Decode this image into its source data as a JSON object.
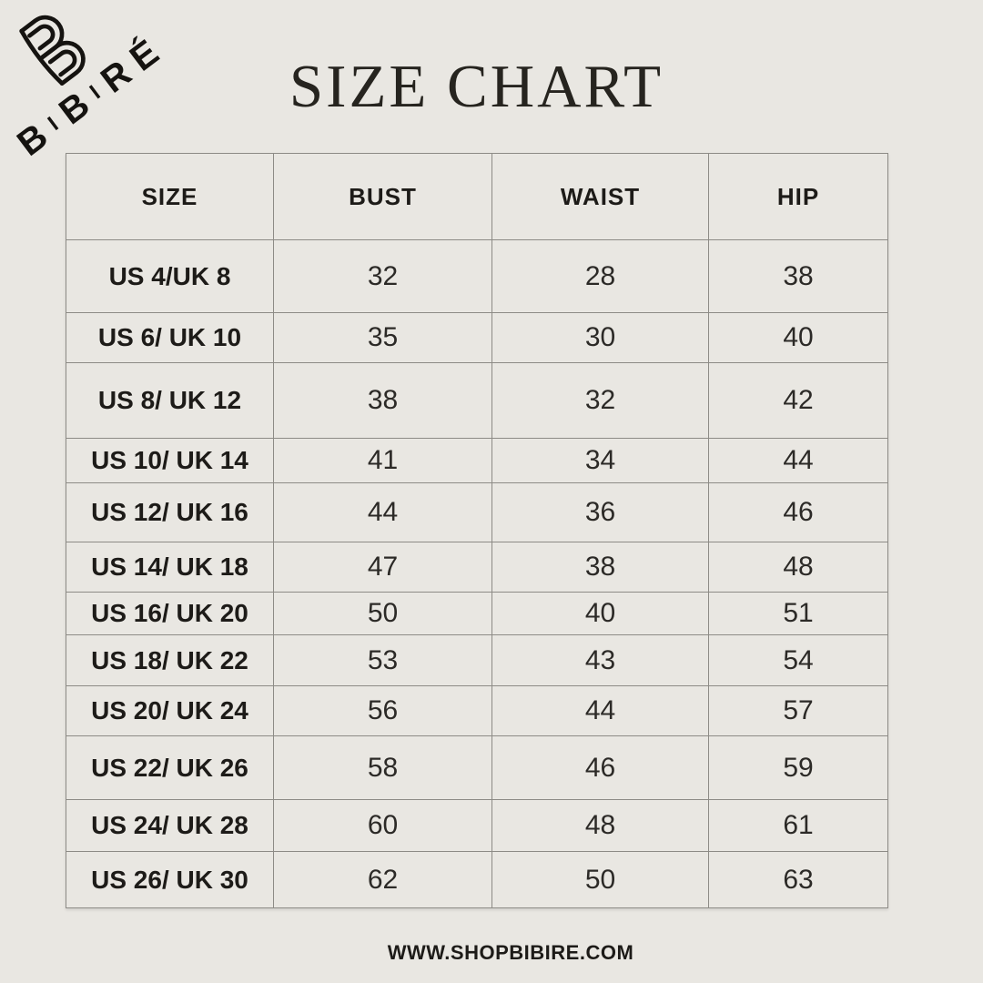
{
  "brand": {
    "wordmark": "BIBIRÉ",
    "monogram_icon": "bibire-b-monogram"
  },
  "title": "SIZE CHART",
  "table": {
    "columns": [
      "SIZE",
      "BUST",
      "WAIST",
      "HIP"
    ],
    "rows": [
      {
        "size": "US 4/UK 8",
        "bust": "32",
        "waist": "28",
        "hip": "38"
      },
      {
        "size": "US 6/ UK 10",
        "bust": "35",
        "waist": "30",
        "hip": "40"
      },
      {
        "size": "US 8/ UK 12",
        "bust": "38",
        "waist": "32",
        "hip": "42"
      },
      {
        "size": "US 10/ UK 14",
        "bust": "41",
        "waist": "34",
        "hip": "44"
      },
      {
        "size": "US 12/ UK 16",
        "bust": "44",
        "waist": "36",
        "hip": "46"
      },
      {
        "size": "US 14/ UK 18",
        "bust": "47",
        "waist": "38",
        "hip": "48"
      },
      {
        "size": "US 16/ UK 20",
        "bust": "50",
        "waist": "40",
        "hip": "51"
      },
      {
        "size": "US 18/ UK 22",
        "bust": "53",
        "waist": "43",
        "hip": "54"
      },
      {
        "size": "US 20/ UK 24",
        "bust": "56",
        "waist": "44",
        "hip": "57"
      },
      {
        "size": "US 22/ UK 26",
        "bust": "58",
        "waist": "46",
        "hip": "59"
      },
      {
        "size": "US 24/ UK 28",
        "bust": "60",
        "waist": "48",
        "hip": "61"
      },
      {
        "size": "US 26/ UK 30",
        "bust": "62",
        "waist": "50",
        "hip": "63"
      }
    ]
  },
  "footer": {
    "website": "WWW.SHOPBIBIRE.COM"
  },
  "colors": {
    "background": "#e9e7e2",
    "text": "#1d1b18",
    "border": "#8d8b86"
  }
}
